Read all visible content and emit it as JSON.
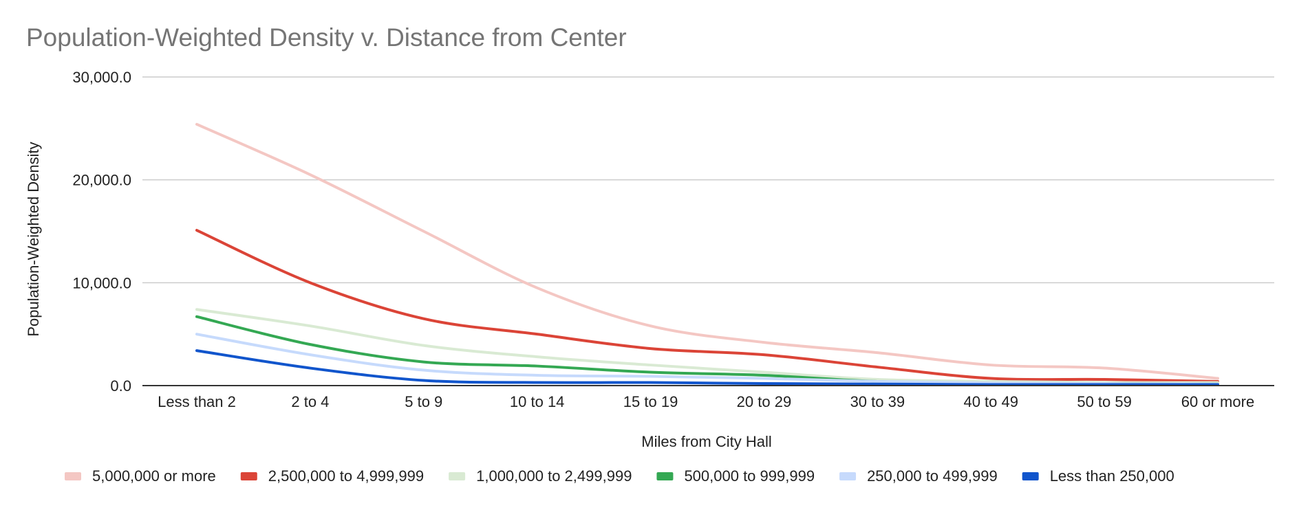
{
  "chart_data": {
    "type": "line",
    "title": "Population-Weighted Density v. Distance from Center",
    "xlabel": "Miles from City Hall",
    "ylabel": "Population-Weighted Density",
    "categories": [
      "Less than 2",
      "2 to 4",
      "5 to 9",
      "10 to 14",
      "15 to 19",
      "20 to 29",
      "30 to 39",
      "40 to 49",
      "50 to 59",
      "60 or more"
    ],
    "ylim": [
      0,
      30000
    ],
    "y_ticks": [
      0,
      10000,
      20000,
      30000
    ],
    "y_tick_labels": [
      "0.0",
      "10,000.0",
      "20,000.0",
      "30,000.0"
    ],
    "grid": true,
    "smooth": true,
    "legend_position": "bottom",
    "series": [
      {
        "name": "5,000,000 or more",
        "color": "#f4c7c3",
        "values": [
          25400,
          20500,
          15000,
          9500,
          5800,
          4200,
          3200,
          2000,
          1700,
          700
        ]
      },
      {
        "name": "2,500,000 to 4,999,999",
        "color": "#db4437",
        "values": [
          15100,
          10000,
          6500,
          5000,
          3600,
          3000,
          1800,
          700,
          600,
          400
        ]
      },
      {
        "name": "1,000,000 to 2,499,999",
        "color": "#d9ead3",
        "values": [
          7400,
          5800,
          3900,
          2800,
          2000,
          1300,
          600,
          400,
          300,
          300
        ]
      },
      {
        "name": "500,000 to 999,999",
        "color": "#34a853",
        "values": [
          6700,
          4000,
          2300,
          1900,
          1300,
          1000,
          400,
          200,
          200,
          150
        ]
      },
      {
        "name": "250,000 to 499,999",
        "color": "#c6dafc",
        "values": [
          5000,
          3000,
          1500,
          1000,
          900,
          700,
          400,
          250,
          200,
          150
        ]
      },
      {
        "name": "Less than 250,000",
        "color": "#1155cc",
        "values": [
          3400,
          1700,
          500,
          300,
          300,
          200,
          150,
          100,
          100,
          100
        ]
      }
    ]
  }
}
